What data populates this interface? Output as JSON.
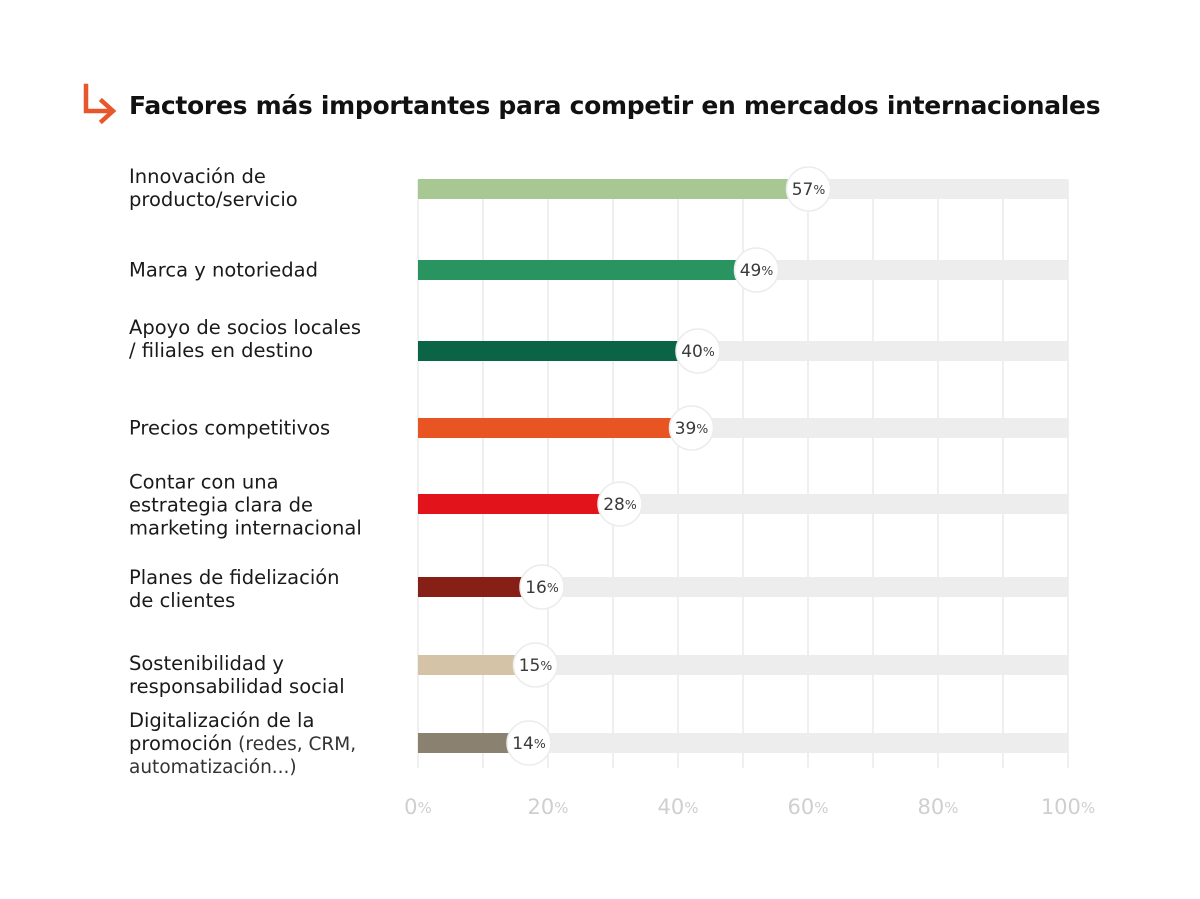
{
  "chart_data": {
    "type": "bar",
    "orientation": "horizontal",
    "title": "Factores más importantes para competir en mercados internacionales",
    "categories": [
      {
        "lines": [
          "Innovación de",
          "producto/servicio"
        ]
      },
      {
        "lines": [
          "Marca y notoriedad"
        ]
      },
      {
        "lines": [
          "Apoyo de socios locales",
          "/ filiales en destino"
        ]
      },
      {
        "lines": [
          "Precios competitivos"
        ]
      },
      {
        "lines": [
          "Contar con una",
          "estrategia clara de",
          "marketing internacional"
        ]
      },
      {
        "lines": [
          "Planes de fidelización",
          "de clientes"
        ]
      },
      {
        "lines": [
          "Sostenibilidad y",
          "responsabilidad social"
        ]
      },
      {
        "lines": [
          "Digitalización de la",
          "promoción"
        ],
        "suffix": "(redes, CRM,",
        "extra_line": "automatización...)"
      }
    ],
    "values": [
      57,
      49,
      40,
      39,
      28,
      16,
      15,
      14
    ],
    "colors": [
      "#a8c893",
      "#2a9461",
      "#0b6446",
      "#e85422",
      "#e3131c",
      "#862016",
      "#d5c3a8",
      "#8a8170"
    ],
    "value_suffix": "%",
    "xlim": [
      0,
      100
    ],
    "x_ticks": [
      0,
      20,
      40,
      60,
      80,
      100
    ],
    "tick_suffix": "%",
    "grid": true,
    "track_color": "#ededed",
    "accent_color": "#e8562b"
  }
}
